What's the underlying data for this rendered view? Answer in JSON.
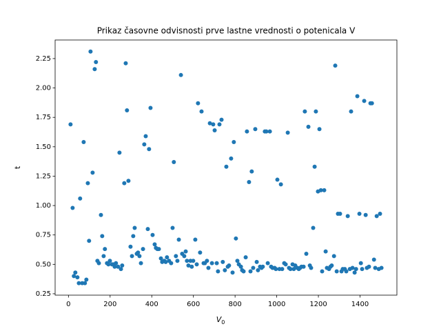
{
  "chart_data": {
    "type": "scatter",
    "title": "Prikaz časovne odvisnosti prve lastne vrednosti o potenicala V",
    "xlabel": "V",
    "xlabel_sub": "0",
    "ylabel": "t",
    "color": "#1f77b4",
    "xlim": [
      -64,
      1577
    ],
    "ylim": [
      0.238,
      2.408
    ],
    "xticks": [
      0,
      200,
      400,
      600,
      800,
      1000,
      1200,
      1400
    ],
    "yticks": [
      0.25,
      {
        "value": 0.5,
        "label": "0.50"
      },
      0.75,
      {
        "value": 1,
        "label": "1.00"
      },
      1.25,
      {
        "value": 1.5,
        "label": "1.50"
      },
      1.75,
      {
        "value": 2,
        "label": "2.00"
      },
      2.25
    ],
    "x": [
      10,
      20,
      26,
      33,
      43,
      50,
      56,
      66,
      73,
      79,
      86,
      93,
      99,
      106,
      116,
      126,
      132,
      139,
      146,
      156,
      162,
      169,
      175,
      185,
      192,
      199,
      209,
      215,
      222,
      228,
      238,
      245,
      252,
      258,
      268,
      275,
      281,
      288,
      298,
      305,
      311,
      318,
      328,
      334,
      341,
      348,
      358,
      364,
      371,
      381,
      387,
      394,
      404,
      414,
      420,
      427,
      434,
      444,
      450,
      460,
      467,
      473,
      483,
      493,
      500,
      506,
      516,
      523,
      530,
      540,
      546,
      556,
      563,
      569,
      576,
      586,
      592,
      599,
      609,
      616,
      622,
      632,
      639,
      649,
      655,
      665,
      672,
      679,
      689,
      695,
      702,
      712,
      718,
      725,
      735,
      741,
      751,
      758,
      765,
      771,
      781,
      788,
      794,
      804,
      811,
      818,
      828,
      834,
      841,
      851,
      857,
      867,
      874,
      880,
      887,
      897,
      904,
      910,
      920,
      927,
      933,
      943,
      950,
      957,
      967,
      973,
      980,
      990,
      996,
      1003,
      1013,
      1020,
      1026,
      1036,
      1043,
      1053,
      1059,
      1066,
      1076,
      1082,
      1089,
      1099,
      1106,
      1112,
      1119,
      1129,
      1135,
      1142,
      1152,
      1159,
      1165,
      1175,
      1182,
      1188,
      1198,
      1205,
      1212,
      1218,
      1228,
      1235,
      1241,
      1251,
      1258,
      1264,
      1275,
      1281,
      1288,
      1294,
      1304,
      1311,
      1317,
      1327,
      1334,
      1341,
      1351,
      1357,
      1364,
      1374,
      1381,
      1387,
      1397,
      1404,
      1410,
      1420,
      1427,
      1433,
      1443,
      1450,
      1457,
      1467,
      1473,
      1480,
      1490,
      1496,
      1503
    ],
    "values": [
      1.69,
      0.98,
      0.4,
      0.43,
      0.39,
      0.34,
      1.06,
      0.34,
      1.54,
      0.34,
      0.37,
      1.19,
      0.7,
      2.31,
      1.28,
      2.16,
      2.22,
      0.53,
      0.51,
      0.92,
      0.74,
      0.57,
      0.63,
      0.51,
      0.5,
      0.53,
      0.5,
      0.5,
      0.48,
      0.51,
      0.48,
      1.45,
      0.46,
      0.49,
      1.19,
      2.21,
      1.81,
      1.21,
      0.65,
      0.57,
      0.74,
      0.81,
      0.59,
      0.6,
      0.57,
      0.51,
      0.63,
      1.52,
      1.59,
      0.8,
      1.48,
      1.83,
      0.75,
      0.67,
      0.64,
      0.63,
      0.63,
      0.55,
      0.52,
      0.53,
      0.52,
      0.56,
      0.53,
      0.51,
      0.81,
      1.37,
      0.57,
      0.53,
      0.71,
      2.11,
      0.59,
      0.57,
      0.61,
      0.53,
      0.49,
      0.53,
      0.48,
      0.53,
      0.71,
      0.5,
      1.87,
      0.6,
      1.8,
      0.51,
      0.51,
      0.53,
      0.47,
      1.7,
      0.51,
      1.69,
      1.64,
      0.51,
      0.44,
      1.69,
      1.73,
      0.52,
      0.45,
      1.33,
      0.48,
      0.49,
      1.4,
      0.43,
      1.54,
      0.72,
      0.53,
      0.5,
      0.48,
      0.45,
      0.44,
      0.56,
      1.63,
      1.2,
      0.44,
      1.29,
      0.47,
      1.65,
      0.52,
      0.45,
      0.48,
      0.47,
      0.48,
      1.63,
      1.63,
      0.51,
      1.63,
      0.48,
      0.47,
      0.47,
      0.46,
      1.22,
      0.46,
      1.18,
      0.46,
      0.51,
      0.5,
      1.62,
      0.47,
      0.46,
      0.5,
      0.46,
      0.49,
      0.47,
      0.46,
      0.47,
      0.48,
      0.48,
      1.8,
      0.59,
      1.67,
      0.49,
      0.47,
      0.81,
      1.33,
      1.8,
      1.12,
      1.65,
      1.13,
      0.44,
      1.13,
      0.61,
      0.47,
      0.46,
      0.48,
      0.49,
      0.57,
      2.19,
      0.44,
      0.93,
      0.93,
      0.44,
      0.46,
      0.46,
      0.44,
      0.91,
      0.46,
      1.8,
      0.47,
      0.43,
      0.46,
      1.93,
      0.93,
      0.51,
      0.46,
      1.89,
      0.92,
      0.47,
      0.48,
      1.87,
      1.87,
      0.54,
      0.47,
      0.91,
      0.46,
      0.93,
      0.47
    ]
  }
}
